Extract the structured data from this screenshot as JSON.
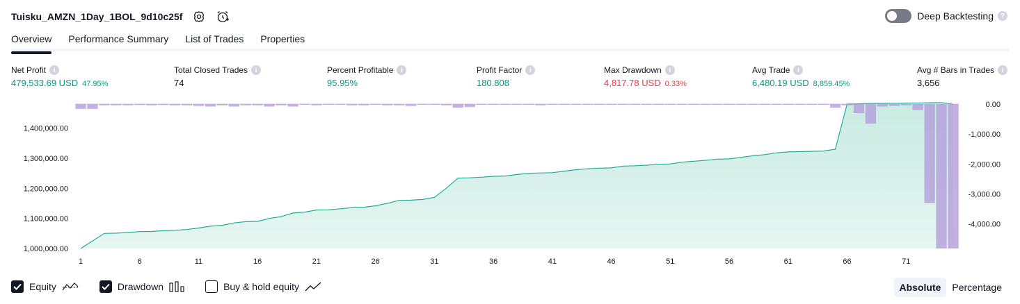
{
  "header": {
    "strategy_name": "Tuisku_AMZN_1Day_1BOL_9d10c25f",
    "deep_backtesting_label": "Deep Backtesting",
    "deep_backtesting_enabled": false
  },
  "tabs": [
    {
      "label": "Overview",
      "active": true
    },
    {
      "label": "Performance Summary",
      "active": false
    },
    {
      "label": "List of Trades",
      "active": false
    },
    {
      "label": "Properties",
      "active": false
    }
  ],
  "metrics": {
    "net_profit": {
      "label": "Net Profit",
      "value": "479,533.69 USD",
      "sub": "47.95%"
    },
    "total_closed_trades": {
      "label": "Total Closed Trades",
      "value": "74"
    },
    "percent_profitable": {
      "label": "Percent Profitable",
      "value": "95.95%"
    },
    "profit_factor": {
      "label": "Profit Factor",
      "value": "180.808"
    },
    "max_drawdown": {
      "label": "Max Drawdown",
      "value": "4,817.78 USD",
      "sub": "0.33%"
    },
    "avg_trade": {
      "label": "Avg Trade",
      "value": "6,480.19 USD",
      "sub": "8,859.45%"
    },
    "avg_bars": {
      "label": "Avg # Bars in Trades",
      "value": "3,656"
    }
  },
  "legend": {
    "equity": {
      "label": "Equity",
      "checked": true
    },
    "drawdown": {
      "label": "Drawdown",
      "checked": true
    },
    "buy_hold": {
      "label": "Buy & hold equity",
      "checked": false
    }
  },
  "view_toggle": {
    "absolute": "Absolute",
    "percentage": "Percentage",
    "active": "absolute"
  },
  "colors": {
    "equity_line": "#22ab94",
    "equity_fill": "#c9ebe1",
    "drawdown": "#b39ddb",
    "green": "#089981",
    "red": "#f23645"
  },
  "chart_data": {
    "type": "area",
    "x_ticks": [
      "1",
      "6",
      "11",
      "16",
      "21",
      "26",
      "31",
      "36",
      "41",
      "46",
      "51",
      "56",
      "61",
      "66",
      "71"
    ],
    "left_axis_ticks": [
      "1,400,000.00",
      "1,300,000.00",
      "1,200,000.00",
      "1,100,000.00",
      "1,000,000.00"
    ],
    "right_axis_ticks": [
      "0.00",
      "-1,000.00",
      "-2,000.00",
      "-3,000.00",
      "-4,000.00"
    ],
    "equity_ylim": [
      1000000,
      1480000
    ],
    "drawdown_ylim": [
      -4817.78,
      0
    ],
    "series": [
      {
        "name": "Equity",
        "x": [
          1,
          2,
          3,
          4,
          5,
          6,
          7,
          8,
          9,
          10,
          11,
          12,
          13,
          14,
          15,
          16,
          17,
          18,
          19,
          20,
          21,
          22,
          23,
          24,
          25,
          26,
          27,
          28,
          29,
          30,
          31,
          32,
          33,
          34,
          35,
          36,
          37,
          38,
          39,
          40,
          41,
          42,
          43,
          44,
          45,
          46,
          47,
          48,
          49,
          50,
          51,
          52,
          53,
          54,
          55,
          56,
          57,
          58,
          59,
          60,
          61,
          62,
          63,
          64,
          65,
          66,
          67,
          68,
          69,
          70,
          71,
          72,
          73,
          74,
          75
        ],
        "values": [
          1000000,
          1025000,
          1050000,
          1051000,
          1053000,
          1056000,
          1056500,
          1059000,
          1060500,
          1063000,
          1068000,
          1074000,
          1077000,
          1085000,
          1089000,
          1090000,
          1100000,
          1106000,
          1118000,
          1121000,
          1128000,
          1128500,
          1132000,
          1136000,
          1137000,
          1142000,
          1150000,
          1160000,
          1160500,
          1163000,
          1170000,
          1200000,
          1234000,
          1235000,
          1237000,
          1240000,
          1241000,
          1246000,
          1250000,
          1251000,
          1252000,
          1257000,
          1262000,
          1265000,
          1267000,
          1268000,
          1274000,
          1275000,
          1277000,
          1280000,
          1281000,
          1287000,
          1290000,
          1293000,
          1297000,
          1298000,
          1303000,
          1308000,
          1312000,
          1318000,
          1321000,
          1322000,
          1323000,
          1324000,
          1330000,
          1480000,
          1481000,
          1482000,
          1482500,
          1483000,
          1483500,
          1484000,
          1484500,
          1485000,
          1479534
        ]
      },
      {
        "name": "Drawdown",
        "x": [
          1,
          2,
          3,
          4,
          5,
          6,
          7,
          8,
          9,
          10,
          11,
          12,
          13,
          14,
          15,
          16,
          17,
          18,
          19,
          20,
          21,
          22,
          23,
          24,
          25,
          26,
          27,
          28,
          29,
          30,
          31,
          32,
          33,
          34,
          35,
          36,
          37,
          38,
          39,
          40,
          41,
          42,
          43,
          44,
          45,
          46,
          47,
          48,
          49,
          50,
          51,
          52,
          53,
          54,
          55,
          56,
          57,
          58,
          59,
          60,
          61,
          62,
          63,
          64,
          65,
          66,
          67,
          68,
          69,
          70,
          71,
          72,
          73,
          74,
          75
        ],
        "values": [
          -160,
          -160,
          -40,
          -40,
          -40,
          -30,
          -40,
          -30,
          -40,
          -40,
          -60,
          -80,
          -40,
          -80,
          -40,
          -40,
          -80,
          -40,
          -80,
          -20,
          -40,
          -20,
          -20,
          -40,
          -40,
          -20,
          -40,
          -40,
          -60,
          -20,
          -20,
          -40,
          -120,
          -100,
          -20,
          -20,
          -20,
          -20,
          -20,
          -40,
          -20,
          -20,
          -20,
          -20,
          -20,
          -20,
          -20,
          -20,
          -20,
          -20,
          -20,
          -20,
          -20,
          -20,
          -20,
          -20,
          -20,
          -20,
          -20,
          -20,
          -20,
          -20,
          -20,
          -20,
          -120,
          -40,
          -300,
          -650,
          -80,
          -60,
          -40,
          -200,
          -3300,
          -4817.78,
          -4817.78
        ]
      }
    ]
  }
}
